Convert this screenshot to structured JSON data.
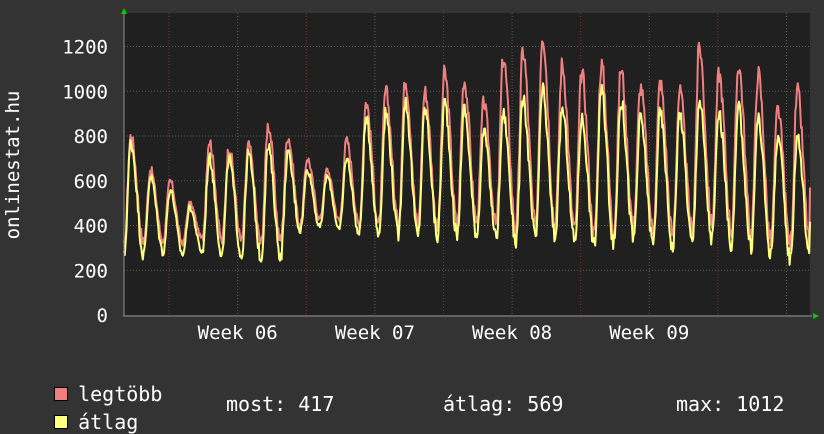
{
  "ylabel": "onlinestat.hu",
  "legend": {
    "max_label": "legtöbb",
    "avg_label": "átlag",
    "max_color": "#f08080",
    "avg_color": "#ffff80"
  },
  "stats": {
    "now": "most: 417",
    "avg": "átlag: 569",
    "max": "max: 1012"
  },
  "chart_data": {
    "type": "line",
    "ylim": [
      0,
      1350
    ],
    "yticks": [
      0,
      200,
      400,
      600,
      800,
      1000,
      1200
    ],
    "xticks": [
      "Week 06",
      "Week 07",
      "Week 08",
      "Week 09"
    ],
    "grid": true,
    "series": [
      {
        "name": "legtöbb",
        "color": "#f08080",
        "day_peaks": [
          800,
          650,
          600,
          500,
          780,
          750,
          760,
          850,
          800,
          700,
          650,
          780,
          950,
          1000,
          1050,
          1000,
          1080,
          1050,
          950,
          1150,
          1180,
          1260,
          1120,
          1080,
          1120,
          1100,
          1020,
          1040,
          1000,
          1200,
          1080,
          1120,
          1080,
          920,
          1000
        ],
        "day_troughs": [
          300,
          320,
          330,
          320,
          340,
          330,
          330,
          320,
          330,
          400,
          430,
          420,
          400,
          400,
          410,
          400,
          390,
          400,
          420,
          400,
          380,
          390,
          400,
          380,
          360,
          380,
          400,
          380,
          360,
          380,
          400,
          380,
          370,
          330,
          320
        ],
        "end": 570
      },
      {
        "name": "átlag",
        "color": "#ffff80",
        "day_peaks": [
          770,
          620,
          560,
          480,
          700,
          700,
          720,
          750,
          720,
          650,
          620,
          700,
          870,
          900,
          950,
          920,
          950,
          920,
          820,
          900,
          960,
          1000,
          920,
          880,
          1000,
          960,
          880,
          900,
          900,
          960,
          900,
          920,
          880,
          800,
          800
        ],
        "day_troughs": [
          260,
          270,
          280,
          270,
          280,
          270,
          260,
          250,
          260,
          380,
          390,
          380,
          360,
          360,
          360,
          350,
          350,
          350,
          360,
          350,
          330,
          340,
          350,
          330,
          310,
          320,
          340,
          320,
          300,
          320,
          340,
          310,
          300,
          270,
          250
        ],
        "end": 417
      }
    ]
  }
}
